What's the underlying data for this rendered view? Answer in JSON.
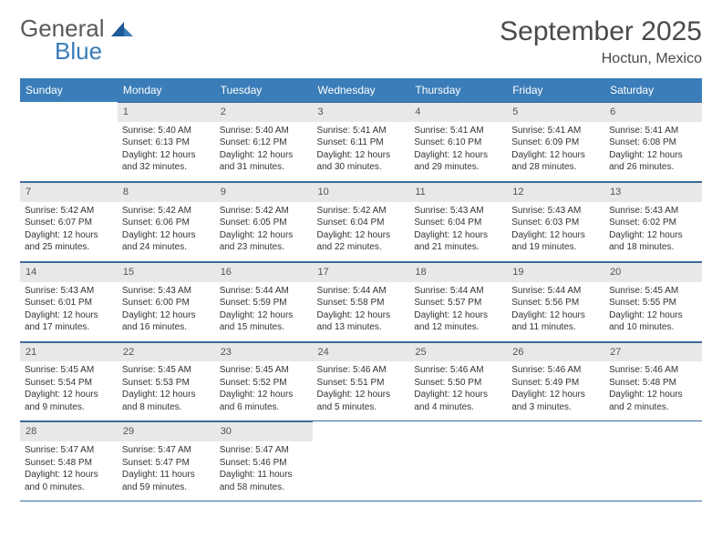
{
  "logo": {
    "word1": "General",
    "word2": "Blue"
  },
  "title": "September 2025",
  "location": "Hoctun, Mexico",
  "dow": [
    "Sunday",
    "Monday",
    "Tuesday",
    "Wednesday",
    "Thursday",
    "Friday",
    "Saturday"
  ],
  "colors": {
    "header_bg": "#3a7db8",
    "header_text": "#ffffff",
    "daynum_bg": "#e8e8e8",
    "rule": "#3a6a9a",
    "text": "#333333",
    "title": "#4a4a4a"
  },
  "typography": {
    "title_fontsize": 30,
    "location_fontsize": 16,
    "dow_fontsize": 12,
    "daynum_fontsize": 11,
    "body_fontsize": 10,
    "font_family": "Arial"
  },
  "layout": {
    "columns": 7,
    "rows": 5,
    "cell_min_height": 58
  },
  "weeks": [
    [
      null,
      {
        "n": "1",
        "sunrise": "5:40 AM",
        "sunset": "6:13 PM",
        "daylight": "12 hours and 32 minutes."
      },
      {
        "n": "2",
        "sunrise": "5:40 AM",
        "sunset": "6:12 PM",
        "daylight": "12 hours and 31 minutes."
      },
      {
        "n": "3",
        "sunrise": "5:41 AM",
        "sunset": "6:11 PM",
        "daylight": "12 hours and 30 minutes."
      },
      {
        "n": "4",
        "sunrise": "5:41 AM",
        "sunset": "6:10 PM",
        "daylight": "12 hours and 29 minutes."
      },
      {
        "n": "5",
        "sunrise": "5:41 AM",
        "sunset": "6:09 PM",
        "daylight": "12 hours and 28 minutes."
      },
      {
        "n": "6",
        "sunrise": "5:41 AM",
        "sunset": "6:08 PM",
        "daylight": "12 hours and 26 minutes."
      }
    ],
    [
      {
        "n": "7",
        "sunrise": "5:42 AM",
        "sunset": "6:07 PM",
        "daylight": "12 hours and 25 minutes."
      },
      {
        "n": "8",
        "sunrise": "5:42 AM",
        "sunset": "6:06 PM",
        "daylight": "12 hours and 24 minutes."
      },
      {
        "n": "9",
        "sunrise": "5:42 AM",
        "sunset": "6:05 PM",
        "daylight": "12 hours and 23 minutes."
      },
      {
        "n": "10",
        "sunrise": "5:42 AM",
        "sunset": "6:04 PM",
        "daylight": "12 hours and 22 minutes."
      },
      {
        "n": "11",
        "sunrise": "5:43 AM",
        "sunset": "6:04 PM",
        "daylight": "12 hours and 21 minutes."
      },
      {
        "n": "12",
        "sunrise": "5:43 AM",
        "sunset": "6:03 PM",
        "daylight": "12 hours and 19 minutes."
      },
      {
        "n": "13",
        "sunrise": "5:43 AM",
        "sunset": "6:02 PM",
        "daylight": "12 hours and 18 minutes."
      }
    ],
    [
      {
        "n": "14",
        "sunrise": "5:43 AM",
        "sunset": "6:01 PM",
        "daylight": "12 hours and 17 minutes."
      },
      {
        "n": "15",
        "sunrise": "5:43 AM",
        "sunset": "6:00 PM",
        "daylight": "12 hours and 16 minutes."
      },
      {
        "n": "16",
        "sunrise": "5:44 AM",
        "sunset": "5:59 PM",
        "daylight": "12 hours and 15 minutes."
      },
      {
        "n": "17",
        "sunrise": "5:44 AM",
        "sunset": "5:58 PM",
        "daylight": "12 hours and 13 minutes."
      },
      {
        "n": "18",
        "sunrise": "5:44 AM",
        "sunset": "5:57 PM",
        "daylight": "12 hours and 12 minutes."
      },
      {
        "n": "19",
        "sunrise": "5:44 AM",
        "sunset": "5:56 PM",
        "daylight": "12 hours and 11 minutes."
      },
      {
        "n": "20",
        "sunrise": "5:45 AM",
        "sunset": "5:55 PM",
        "daylight": "12 hours and 10 minutes."
      }
    ],
    [
      {
        "n": "21",
        "sunrise": "5:45 AM",
        "sunset": "5:54 PM",
        "daylight": "12 hours and 9 minutes."
      },
      {
        "n": "22",
        "sunrise": "5:45 AM",
        "sunset": "5:53 PM",
        "daylight": "12 hours and 8 minutes."
      },
      {
        "n": "23",
        "sunrise": "5:45 AM",
        "sunset": "5:52 PM",
        "daylight": "12 hours and 6 minutes."
      },
      {
        "n": "24",
        "sunrise": "5:46 AM",
        "sunset": "5:51 PM",
        "daylight": "12 hours and 5 minutes."
      },
      {
        "n": "25",
        "sunrise": "5:46 AM",
        "sunset": "5:50 PM",
        "daylight": "12 hours and 4 minutes."
      },
      {
        "n": "26",
        "sunrise": "5:46 AM",
        "sunset": "5:49 PM",
        "daylight": "12 hours and 3 minutes."
      },
      {
        "n": "27",
        "sunrise": "5:46 AM",
        "sunset": "5:48 PM",
        "daylight": "12 hours and 2 minutes."
      }
    ],
    [
      {
        "n": "28",
        "sunrise": "5:47 AM",
        "sunset": "5:48 PM",
        "daylight": "12 hours and 0 minutes."
      },
      {
        "n": "29",
        "sunrise": "5:47 AM",
        "sunset": "5:47 PM",
        "daylight": "11 hours and 59 minutes."
      },
      {
        "n": "30",
        "sunrise": "5:47 AM",
        "sunset": "5:46 PM",
        "daylight": "11 hours and 58 minutes."
      },
      null,
      null,
      null,
      null
    ]
  ],
  "labels": {
    "sunrise": "Sunrise: ",
    "sunset": "Sunset: ",
    "daylight": "Daylight: "
  }
}
